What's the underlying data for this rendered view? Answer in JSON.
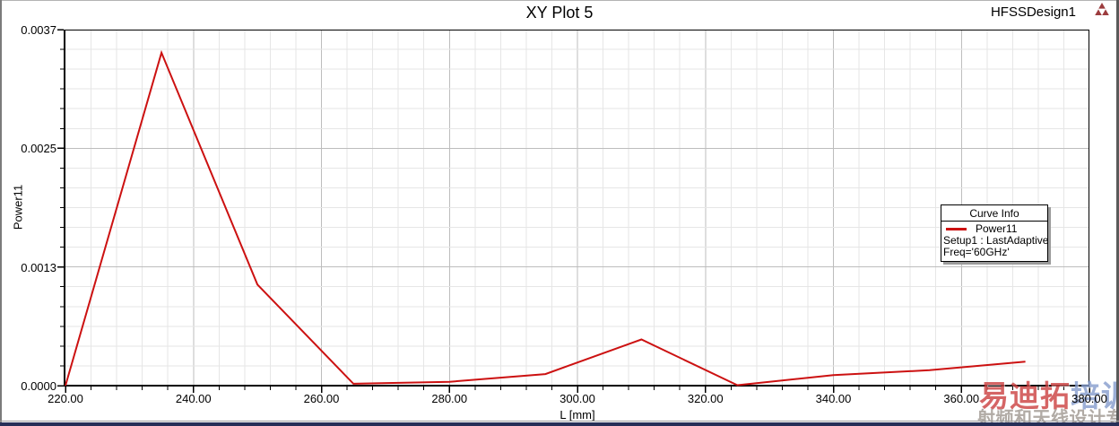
{
  "header": {
    "title": "XY Plot 5",
    "design_name": "HFSSDesign1",
    "logo_icon": "ansoft-triangle-icon"
  },
  "chart_data": {
    "type": "line",
    "title": "XY Plot 5",
    "xlabel": "L [mm]",
    "ylabel": "Power11",
    "xlim": [
      220,
      380
    ],
    "ylim": [
      0,
      0.0037
    ],
    "grid": "on",
    "x_major_step": 20,
    "x_minor_step": 4,
    "y_minor_divisions": 18,
    "y_major_every": 6,
    "x_ticks": [
      {
        "v": 220,
        "label": "220.00"
      },
      {
        "v": 240,
        "label": "240.00"
      },
      {
        "v": 260,
        "label": "260.00"
      },
      {
        "v": 280,
        "label": "280.00"
      },
      {
        "v": 300,
        "label": "300.00"
      },
      {
        "v": 320,
        "label": "320.00"
      },
      {
        "v": 340,
        "label": "340.00"
      },
      {
        "v": 360,
        "label": "360.00"
      },
      {
        "v": 380,
        "label": "380.00"
      }
    ],
    "y_ticks": [
      {
        "frac": 0,
        "label": "0.0000"
      },
      {
        "frac": 0.3333,
        "label": "0.0013"
      },
      {
        "frac": 0.6667,
        "label": "0.0025"
      },
      {
        "frac": 1,
        "label": "0.0037"
      }
    ],
    "legend_position": "right-middle-inside",
    "series": [
      {
        "name": "Power11",
        "setup_line": "Setup1 : LastAdaptive",
        "freq_line": "Freq='60GHz'",
        "color": "#cc1111",
        "x": [
          220,
          235,
          250,
          265,
          280,
          295,
          310,
          325,
          340,
          355,
          370
        ],
        "y": [
          0.0,
          0.00346,
          0.00105,
          2e-05,
          4e-05,
          0.00012,
          0.00048,
          5e-06,
          0.00011,
          0.00016,
          0.00025
        ]
      }
    ]
  },
  "legend": {
    "header": "Curve Info"
  },
  "watermark": {
    "line1_red": "易迪拓",
    "line1_blue": "培训",
    "line2": "射频和天线设计专家"
  },
  "colors": {
    "curve": "#cc1111",
    "grid_minor": "#e6e6e6",
    "grid_major": "#bdbdbd",
    "axis": "#000000",
    "watermark_red": "rgba(198,42,42,0.85)",
    "watermark_blue": "rgba(128,152,203,0.9)",
    "watermark_gray": "#a9a29c",
    "bottom_bar": "#262f58"
  }
}
